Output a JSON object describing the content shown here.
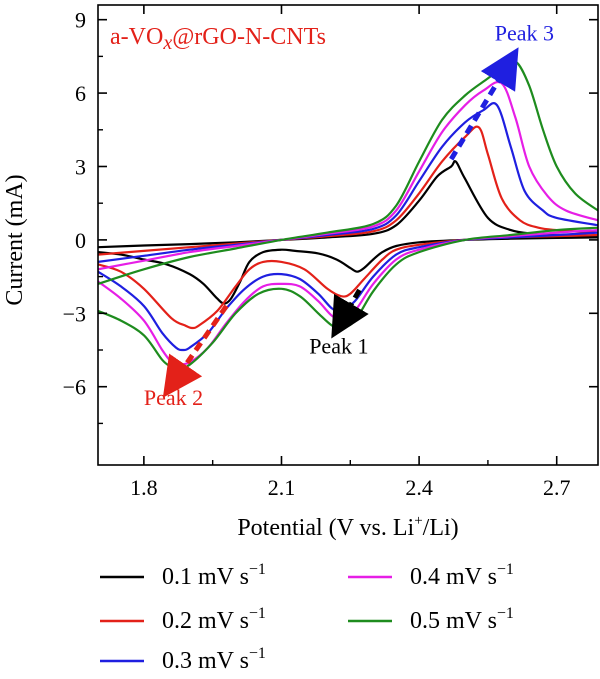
{
  "chart_data": {
    "type": "line",
    "title": "",
    "sample_label": {
      "prefix": "a-VO",
      "sub": "x",
      "suffix": "@rGO-N-CNTs"
    },
    "xlabel": {
      "main": "Potential (V vs. Li",
      "sup": "+",
      "tail": "/Li)"
    },
    "ylabel": "Current (mA)",
    "xlim": [
      1.7,
      2.79
    ],
    "ylim": [
      -9.2,
      9.6
    ],
    "xticks": [
      1.8,
      2.1,
      2.4,
      2.7
    ],
    "xtick_labels": [
      "1.8",
      "2.1",
      "2.4",
      "2.7"
    ],
    "yticks": [
      -6,
      -3,
      0,
      3,
      6,
      9
    ],
    "ytick_labels": [
      "−6",
      "−3",
      "0",
      "3",
      "6",
      "9"
    ],
    "grid": false,
    "legend_position": "bottom",
    "unit_text": {
      "main": " mV s",
      "sup": "−1"
    },
    "series": [
      {
        "name": "0.1",
        "color": "#000000",
        "anodic": {
          "x": [
            1.7,
            1.8,
            1.9,
            2.0,
            2.1,
            2.2,
            2.3,
            2.35,
            2.4,
            2.44,
            2.47,
            2.48,
            2.5,
            2.55,
            2.6,
            2.65,
            2.7,
            2.79
          ],
          "y": [
            -0.3,
            -0.23,
            -0.17,
            -0.1,
            0.0,
            0.1,
            0.25,
            0.6,
            1.6,
            2.6,
            3.0,
            3.2,
            2.5,
            0.9,
            0.4,
            0.25,
            0.2,
            0.15
          ]
        },
        "cathodic": {
          "x": [
            2.79,
            2.7,
            2.6,
            2.5,
            2.4,
            2.35,
            2.32,
            2.3,
            2.28,
            2.265,
            2.25,
            2.22,
            2.18,
            2.13,
            2.1,
            2.06,
            2.03,
            2.01,
            1.99,
            1.975,
            1.96,
            1.93,
            1.9,
            1.85,
            1.8,
            1.75,
            1.7
          ],
          "y": [
            0.1,
            0.08,
            0.05,
            0.0,
            -0.1,
            -0.25,
            -0.5,
            -0.8,
            -1.15,
            -1.3,
            -1.15,
            -0.8,
            -0.55,
            -0.45,
            -0.4,
            -0.5,
            -0.9,
            -1.7,
            -2.4,
            -2.6,
            -2.4,
            -1.8,
            -1.4,
            -1.0,
            -0.8,
            -0.6,
            -0.5
          ]
        }
      },
      {
        "name": "0.2",
        "color": "#e32119",
        "anodic": {
          "x": [
            1.7,
            1.8,
            1.9,
            2.0,
            2.1,
            2.2,
            2.3,
            2.35,
            2.4,
            2.45,
            2.5,
            2.53,
            2.55,
            2.58,
            2.62,
            2.66,
            2.7,
            2.79
          ],
          "y": [
            -0.6,
            -0.45,
            -0.3,
            -0.15,
            0.0,
            0.15,
            0.35,
            0.8,
            1.9,
            3.2,
            4.2,
            4.6,
            3.5,
            1.7,
            0.8,
            0.5,
            0.4,
            0.3
          ]
        },
        "cathodic": {
          "x": [
            2.79,
            2.7,
            2.6,
            2.5,
            2.4,
            2.35,
            2.32,
            2.28,
            2.25,
            2.23,
            2.2,
            2.15,
            2.1,
            2.06,
            2.03,
            2.0,
            1.96,
            1.92,
            1.905,
            1.89,
            1.86,
            1.8,
            1.75,
            1.7
          ],
          "y": [
            0.2,
            0.15,
            0.1,
            0.0,
            -0.2,
            -0.4,
            -0.8,
            -1.6,
            -2.2,
            -2.3,
            -2.0,
            -1.2,
            -0.9,
            -0.9,
            -1.2,
            -1.9,
            -2.9,
            -3.5,
            -3.6,
            -3.5,
            -3.2,
            -2.0,
            -1.3,
            -1.0
          ]
        }
      },
      {
        "name": "0.3",
        "color": "#1f1fe0",
        "anodic": {
          "x": [
            1.7,
            1.8,
            1.9,
            2.0,
            2.1,
            2.2,
            2.3,
            2.35,
            2.4,
            2.45,
            2.5,
            2.54,
            2.57,
            2.6,
            2.63,
            2.67,
            2.7,
            2.79
          ],
          "y": [
            -0.9,
            -0.65,
            -0.4,
            -0.2,
            0.0,
            0.2,
            0.45,
            1.0,
            2.4,
            3.8,
            4.8,
            5.3,
            5.5,
            3.8,
            2.0,
            1.2,
            0.9,
            0.6
          ]
        },
        "cathodic": {
          "x": [
            2.79,
            2.7,
            2.6,
            2.5,
            2.4,
            2.35,
            2.3,
            2.26,
            2.23,
            2.21,
            2.18,
            2.14,
            2.1,
            2.06,
            2.02,
            1.98,
            1.94,
            1.9,
            1.885,
            1.87,
            1.84,
            1.8,
            1.75,
            1.7
          ],
          "y": [
            0.3,
            0.2,
            0.1,
            0.0,
            -0.3,
            -0.6,
            -1.5,
            -2.5,
            -2.9,
            -2.8,
            -2.2,
            -1.6,
            -1.4,
            -1.5,
            -2.0,
            -2.8,
            -3.8,
            -4.4,
            -4.5,
            -4.4,
            -3.8,
            -2.7,
            -1.9,
            -1.3
          ]
        }
      },
      {
        "name": "0.4",
        "color": "#e61ee6",
        "anodic": {
          "x": [
            1.7,
            1.8,
            1.9,
            2.0,
            2.1,
            2.2,
            2.3,
            2.35,
            2.4,
            2.45,
            2.5,
            2.54,
            2.58,
            2.61,
            2.64,
            2.68,
            2.72,
            2.79
          ],
          "y": [
            -1.2,
            -0.85,
            -0.5,
            -0.25,
            0.0,
            0.25,
            0.55,
            1.2,
            2.8,
            4.4,
            5.5,
            6.1,
            6.4,
            5.0,
            3.0,
            1.8,
            1.2,
            0.8
          ]
        },
        "cathodic": {
          "x": [
            2.79,
            2.7,
            2.6,
            2.5,
            2.4,
            2.35,
            2.3,
            2.26,
            2.23,
            2.21,
            2.18,
            2.14,
            2.1,
            2.06,
            2.02,
            1.98,
            1.94,
            1.9,
            1.87,
            1.86,
            1.84,
            1.8,
            1.75,
            1.7
          ],
          "y": [
            0.4,
            0.3,
            0.15,
            0.0,
            -0.4,
            -0.8,
            -1.8,
            -2.9,
            -3.2,
            -3.1,
            -2.5,
            -1.9,
            -1.8,
            -1.9,
            -2.5,
            -3.4,
            -4.4,
            -5.0,
            -5.1,
            -5.0,
            -4.5,
            -3.3,
            -2.4,
            -1.7
          ]
        }
      },
      {
        "name": "0.5",
        "color": "#1e8c1e",
        "anodic": {
          "x": [
            1.7,
            1.8,
            1.9,
            2.0,
            2.1,
            2.2,
            2.3,
            2.35,
            2.4,
            2.45,
            2.5,
            2.55,
            2.58,
            2.61,
            2.64,
            2.67,
            2.7,
            2.74,
            2.79
          ],
          "y": [
            -1.8,
            -1.2,
            -0.7,
            -0.35,
            0.0,
            0.3,
            0.65,
            1.4,
            3.2,
            4.9,
            5.9,
            6.6,
            7.0,
            7.3,
            6.3,
            4.5,
            3.0,
            1.9,
            1.2
          ]
        },
        "cathodic": {
          "x": [
            2.79,
            2.7,
            2.6,
            2.5,
            2.4,
            2.35,
            2.3,
            2.26,
            2.23,
            2.21,
            2.18,
            2.14,
            2.1,
            2.05,
            2.0,
            1.95,
            1.9,
            1.87,
            1.86,
            1.84,
            1.8,
            1.75,
            1.7
          ],
          "y": [
            0.5,
            0.4,
            0.2,
            0.0,
            -0.5,
            -1.0,
            -2.1,
            -3.3,
            -3.6,
            -3.5,
            -3.0,
            -2.3,
            -2.0,
            -2.2,
            -3.0,
            -4.2,
            -5.1,
            -5.3,
            -5.2,
            -4.9,
            -3.9,
            -3.3,
            -2.9
          ]
        }
      }
    ],
    "annotations": [
      {
        "text": "Peak 1",
        "color": "#000000",
        "x": 2.225,
        "y": -4.65,
        "anchor": "middle"
      },
      {
        "text": "Peak 2",
        "color": "#e32119",
        "x": 1.8,
        "y": -6.75,
        "anchor": "start"
      },
      {
        "text": "Peak 3",
        "color": "#1f1fe0",
        "x": 2.565,
        "y": 8.15,
        "anchor": "start"
      }
    ],
    "arrows": [
      {
        "name": "peak-1-arrow",
        "color": "#000000",
        "from": [
          2.27,
          -2.05
        ],
        "to": [
          2.225,
          -3.5
        ]
      },
      {
        "name": "peak-2-arrow",
        "color": "#e32119",
        "from": [
          1.98,
          -2.7
        ],
        "to": [
          1.86,
          -5.95
        ]
      },
      {
        "name": "peak-3-arrow",
        "color": "#1f1fe0",
        "from": [
          2.47,
          3.3
        ],
        "to": [
          2.6,
          7.35
        ]
      }
    ]
  }
}
